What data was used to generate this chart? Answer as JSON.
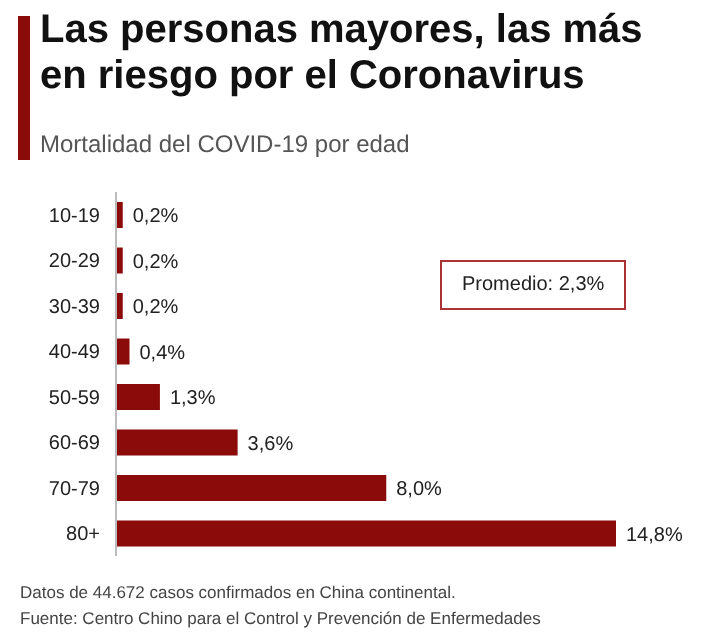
{
  "chart_data": {
    "type": "bar",
    "orientation": "horizontal",
    "title": "Las personas mayores, las más en riesgo por el Coronavirus",
    "subtitle": "Mortalidad del COVID-19 por edad",
    "categories": [
      "10-19",
      "20-29",
      "30-39",
      "40-49",
      "50-59",
      "60-69",
      "70-79",
      "80+"
    ],
    "values": [
      0.2,
      0.2,
      0.2,
      0.4,
      1.3,
      3.6,
      8.0,
      14.8
    ],
    "value_labels": [
      "0,2%",
      "0,2%",
      "0,2%",
      "0,4%",
      "1,3%",
      "3,6%",
      "8,0%",
      "14,8%"
    ],
    "color": "#8b0b0b",
    "annotations": [
      "Promedio: 2,3%",
      "Datos de 44.672 casos confirmados en China continental.",
      "Fuente: Centro Chino para el Control y Prevención de Enfermedades"
    ],
    "grid": false,
    "legend": false
  }
}
